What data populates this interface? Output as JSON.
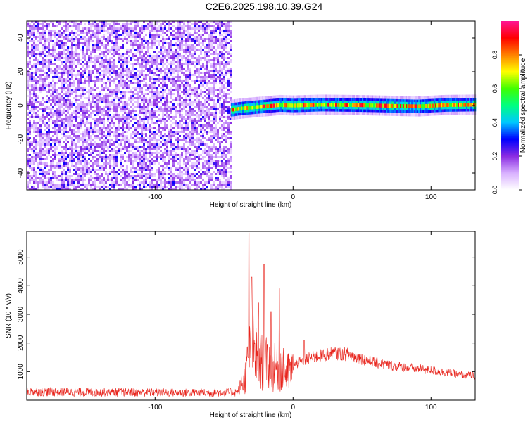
{
  "title": "C2E6.2025.198.10.39.G24",
  "chart_data": [
    {
      "type": "heatmap",
      "xlabel": "Height of straight line (km)",
      "ylabel": "Frequency (Hz)",
      "xlim": [
        -193,
        132
      ],
      "ylim": [
        -50,
        50
      ],
      "xticks": [
        -100,
        0,
        100
      ],
      "yticks": [
        -40,
        -20,
        0,
        20,
        40
      ],
      "colorbar": {
        "label": "Normalized spectral amplitude",
        "range": [
          0,
          1
        ],
        "ticks": [
          0.0,
          0.2,
          0.4,
          0.6,
          0.8
        ],
        "colors": [
          "#ffffff",
          "#d8b0ff",
          "#8a2be2",
          "#0000ff",
          "#00c8ff",
          "#00ff80",
          "#40ff00",
          "#ffff00",
          "#ff8000",
          "#ff0000",
          "#ff1493"
        ]
      },
      "regions": [
        {
          "name": "noise",
          "x_range": [
            -193,
            -45
          ],
          "y_range": [
            -50,
            50
          ],
          "amplitude": [
            0.05,
            0.3
          ]
        },
        {
          "name": "carrier",
          "x_range": [
            -45,
            132
          ],
          "center_hz": 0,
          "halfwidth_hz": 2.5,
          "amplitude": [
            0.35,
            0.85
          ]
        }
      ],
      "carrier_center_hz": [
        {
          "x": -45,
          "y": -2.5
        },
        {
          "x": -35,
          "y": -1.5
        },
        {
          "x": -25,
          "y": -0.8
        },
        {
          "x": -10,
          "y": 0.3
        },
        {
          "x": 0,
          "y": 0
        },
        {
          "x": 20,
          "y": 0.5
        },
        {
          "x": 50,
          "y": 0.2
        },
        {
          "x": 90,
          "y": -0.5
        },
        {
          "x": 110,
          "y": 0.3
        },
        {
          "x": 132,
          "y": 0.5
        }
      ],
      "grid": false
    },
    {
      "type": "line",
      "xlabel": "Height of straight line (km)",
      "ylabel": "SNR (10 * v/v)",
      "xlim": [
        -193,
        132
      ],
      "ylim": [
        0,
        5900
      ],
      "xticks": [
        -100,
        0,
        100
      ],
      "yticks": [
        1000,
        2000,
        3000,
        4000,
        5000
      ],
      "color": "#e8241c",
      "envelope": [
        {
          "x": -193,
          "y": 300
        },
        {
          "x": -150,
          "y": 280
        },
        {
          "x": -100,
          "y": 270
        },
        {
          "x": -60,
          "y": 260
        },
        {
          "x": -40,
          "y": 280
        },
        {
          "x": -35,
          "y": 900
        },
        {
          "x": -30,
          "y": 2200
        },
        {
          "x": -25,
          "y": 1600
        },
        {
          "x": -20,
          "y": 1500
        },
        {
          "x": -15,
          "y": 1300
        },
        {
          "x": -10,
          "y": 1400
        },
        {
          "x": -5,
          "y": 1100
        },
        {
          "x": 0,
          "y": 1200
        },
        {
          "x": 10,
          "y": 1450
        },
        {
          "x": 20,
          "y": 1550
        },
        {
          "x": 30,
          "y": 1650
        },
        {
          "x": 40,
          "y": 1600
        },
        {
          "x": 60,
          "y": 1300
        },
        {
          "x": 80,
          "y": 1150
        },
        {
          "x": 100,
          "y": 1050
        },
        {
          "x": 120,
          "y": 900
        },
        {
          "x": 132,
          "y": 850
        }
      ],
      "spikes": [
        {
          "x": -32,
          "y": 5850
        },
        {
          "x": -30,
          "y": 4300
        },
        {
          "x": -25,
          "y": 3400
        },
        {
          "x": -21,
          "y": 4750
        },
        {
          "x": -16,
          "y": 3100
        },
        {
          "x": -10,
          "y": 3900
        },
        {
          "x": 8,
          "y": 2100
        }
      ],
      "grid": false
    }
  ]
}
